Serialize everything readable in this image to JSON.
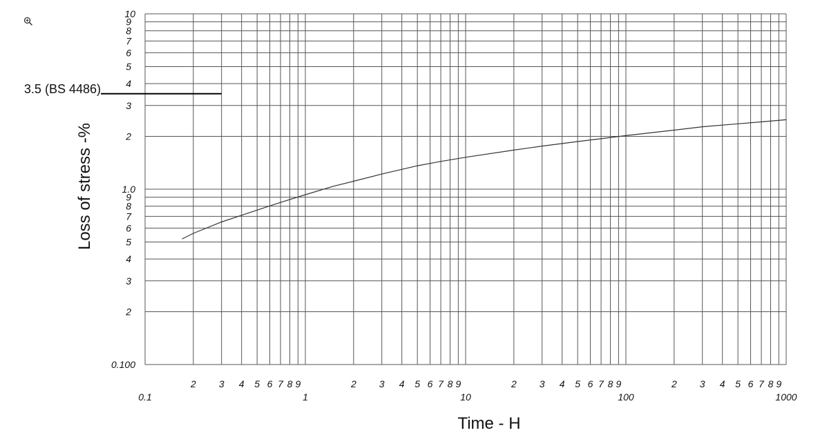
{
  "zoom_icon": "zoom-in-icon",
  "chart_data": {
    "type": "line",
    "title": "",
    "xlabel": "Time - H",
    "ylabel": "Loss of stress -%",
    "x_scale": "log",
    "y_scale": "log",
    "xlim": [
      0.1,
      1000
    ],
    "ylim": [
      0.1,
      10
    ],
    "grid": true,
    "x_decade_labels": [
      "0.1",
      "1",
      "10",
      "100",
      "1000"
    ],
    "x_minor_labels": [
      "2",
      "3",
      "4",
      "5",
      "6",
      "7",
      "8",
      "9"
    ],
    "y_decade_labels": [
      "0.100",
      "1.0",
      "10"
    ],
    "y_minor_labels": [
      "2",
      "3",
      "4",
      "5",
      "6",
      "7",
      "8",
      "9"
    ],
    "reference_line": {
      "label": "3.5 (BS 4486)",
      "y": 3.5,
      "x_end": 0.3
    },
    "series": [
      {
        "x": [
          0.17,
          0.2,
          0.3,
          0.4,
          0.5,
          0.7,
          1,
          1.5,
          2,
          3,
          5,
          7,
          10,
          20,
          30,
          50,
          70,
          100,
          200,
          300,
          500,
          700,
          1000
        ],
        "y": [
          0.52,
          0.56,
          0.65,
          0.71,
          0.76,
          0.84,
          0.93,
          1.04,
          1.11,
          1.22,
          1.36,
          1.44,
          1.52,
          1.67,
          1.76,
          1.87,
          1.94,
          2.02,
          2.17,
          2.27,
          2.36,
          2.42,
          2.49
        ]
      }
    ]
  }
}
